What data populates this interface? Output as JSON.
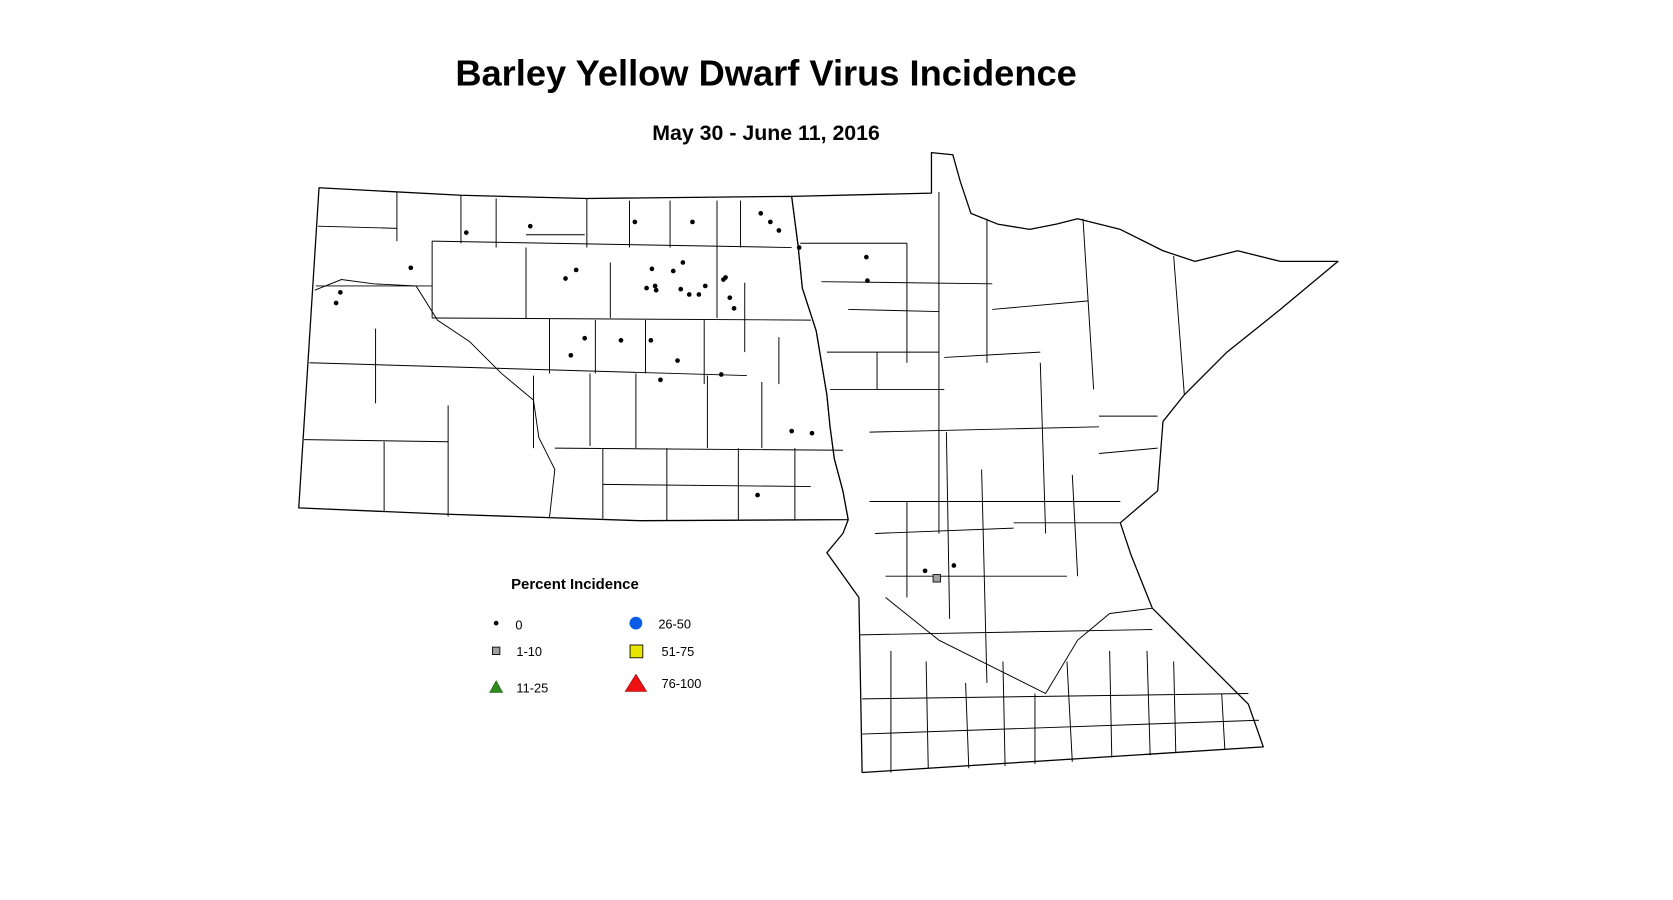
{
  "title": "Barley Yellow Dwarf Virus Incidence",
  "subtitle": "May 30 - June 11, 2016",
  "legend": {
    "title": "Percent Incidence",
    "items": [
      {
        "label": "0",
        "symbol": "small-dot",
        "color": "#000000"
      },
      {
        "label": "1-10",
        "symbol": "square",
        "color": "#a0a0a0"
      },
      {
        "label": "11-25",
        "symbol": "triangle",
        "color": "#2e8b1e"
      },
      {
        "label": "26-50",
        "symbol": "circle",
        "color": "#0a5ce6"
      },
      {
        "label": "51-75",
        "symbol": "square",
        "color": "#e6e600"
      },
      {
        "label": "76-100",
        "symbol": "triangle",
        "color": "#ee1111"
      }
    ]
  },
  "map": {
    "sites_by_category": {
      "0": 41,
      "1-10": 1,
      "11-25": 0,
      "26-50": 0,
      "51-75": 0,
      "76-100": 0
    }
  }
}
